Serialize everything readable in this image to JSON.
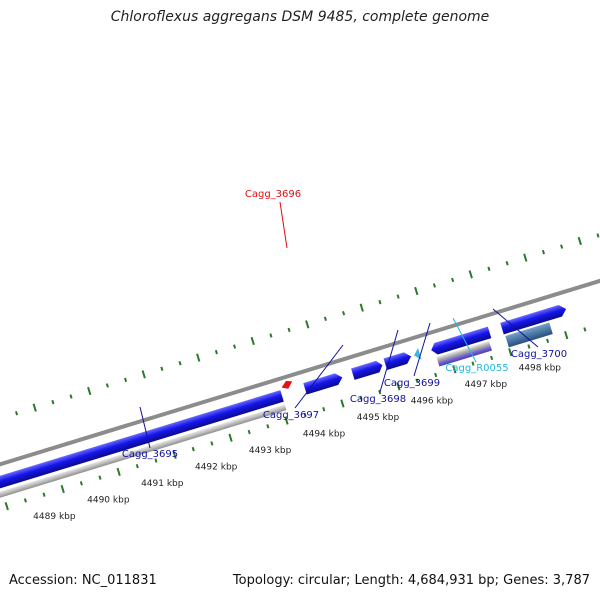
{
  "title": "Chloroflexus aggregans DSM 9485, complete genome",
  "footer": {
    "accession": "Accession: NC_011831",
    "summary": "Topology: circular; Length: 4,684,931 bp; Genes: 3,787"
  },
  "colors": {
    "backbone": "#8c8c8c",
    "cds": "#1515e0",
    "rna": "#bdbdbd",
    "ticks": "#2a7a2a",
    "label_gene": "#1010a0",
    "label_highlight": "#dd1111",
    "label_rna": "#22b8e0"
  },
  "scale_labels": [
    "4489 kbp",
    "4490 kbp",
    "4491 kbp",
    "4492 kbp",
    "4493 kbp",
    "4494 kbp",
    "4495 kbp",
    "4496 kbp",
    "4497 kbp",
    "4498 kbp"
  ],
  "gene_labels": [
    {
      "text": "Cagg_3696",
      "kind": "highlight"
    },
    {
      "text": "Cagg_3695",
      "kind": "gene"
    },
    {
      "text": "Cagg_3697",
      "kind": "gene"
    },
    {
      "text": "Cagg_3698",
      "kind": "gene"
    },
    {
      "text": "Cagg_3699",
      "kind": "gene"
    },
    {
      "text": "Cagg_R0055",
      "kind": "rna"
    },
    {
      "text": "Cagg_3700",
      "kind": "gene"
    }
  ]
}
